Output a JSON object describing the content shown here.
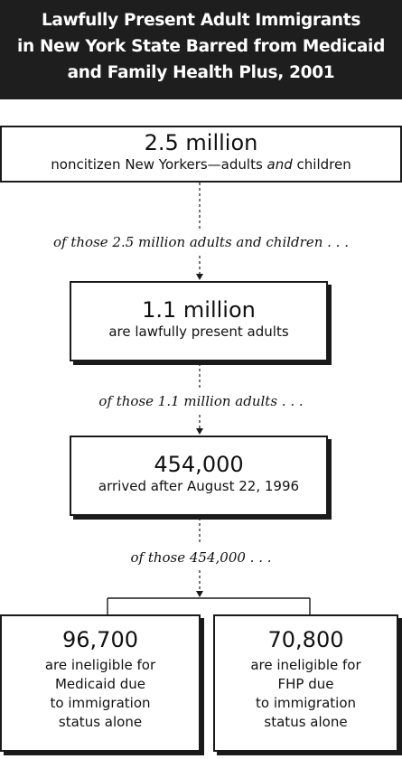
{
  "title": {
    "line1": "Lawfully Present Adult Immigrants",
    "line2": "in New York State Barred from Medicaid",
    "line3": "and Family Health Plus, 2001"
  },
  "box1": {
    "number": "2.5 million",
    "desc_before": "noncitizen New Yorkers—adults ",
    "desc_emphasis": "and",
    "desc_after": " children"
  },
  "caption1": "of those 2.5 million adults and children . . .",
  "box2": {
    "number": "1.1 million",
    "desc": "are lawfully present adults"
  },
  "caption2": "of those 1.1 million adults . . .",
  "box3": {
    "number": "454,000",
    "desc": "arrived after August 22, 1996"
  },
  "caption3": "of those 454,000 . . .",
  "box4": {
    "number": "96,700",
    "lines": [
      "are ineligible for",
      "Medicaid due",
      "to immigration",
      "status alone"
    ]
  },
  "box5": {
    "number": "70,800",
    "lines": [
      "are ineligible for",
      "FHP due",
      "to immigration",
      "status alone"
    ]
  },
  "colors": {
    "header_bg": "#1e1e1e",
    "header_text": "#ffffff",
    "border": "#1a1a1a"
  }
}
